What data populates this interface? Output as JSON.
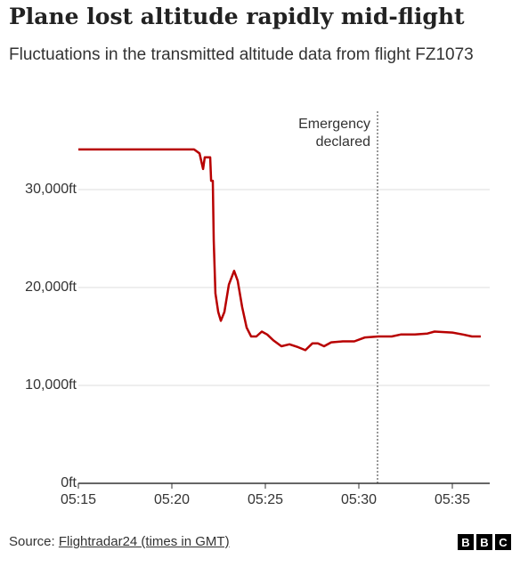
{
  "chart_data": {
    "type": "line",
    "title": "Plane lost altitude rapidly mid-flight",
    "subtitle": "Fluctuations in the transmitted altitude data from flight FZ1073",
    "x": [
      315,
      321.19,
      321.48,
      321.67,
      321.76,
      322.05,
      322.1,
      322.19,
      322.24,
      322.33,
      322.48,
      322.62,
      322.81,
      323.05,
      323.33,
      323.52,
      323.76,
      324,
      324.24,
      324.52,
      324.81,
      325.1,
      325.43,
      325.86,
      326.29,
      326.76,
      327.14,
      327.52,
      327.81,
      328.14,
      328.52,
      329.14,
      329.76,
      330.33,
      331.05,
      331.76,
      332.24,
      333,
      333.67,
      334.05,
      335,
      335.57,
      336.05,
      336.52
    ],
    "series": [
      {
        "name": "Altitude",
        "color": "#b80000",
        "values": [
          34100,
          34100,
          33700,
          32100,
          33300,
          33300,
          30900,
          30900,
          24800,
          19400,
          17500,
          16600,
          17500,
          20300,
          21700,
          20700,
          18000,
          15900,
          15000,
          15000,
          15500,
          15200,
          14600,
          14000,
          14200,
          13900,
          13600,
          14300,
          14300,
          14000,
          14400,
          14500,
          14500,
          14900,
          15000,
          15000,
          15200,
          15200,
          15300,
          15500,
          15400,
          15200,
          15000,
          15000
        ]
      }
    ],
    "xlim": [
      315,
      337
    ],
    "xticks": [
      {
        "value": 315,
        "label": "05:15"
      },
      {
        "value": 320,
        "label": "05:20"
      },
      {
        "value": 325,
        "label": "05:25"
      },
      {
        "value": 330,
        "label": "05:30"
      },
      {
        "value": 335,
        "label": "05:35"
      }
    ],
    "ylim": [
      0,
      38000
    ],
    "yticks": [
      {
        "value": 0,
        "label": "0ft"
      },
      {
        "value": 10000,
        "label": "10,000ft"
      },
      {
        "value": 20000,
        "label": "20,000ft"
      },
      {
        "value": 30000,
        "label": "30,000ft"
      }
    ],
    "grid": true,
    "annotation": {
      "x": 331,
      "text": [
        "Emergency",
        "declared"
      ]
    },
    "source_label": "Source:",
    "source": "Flightradar24 (times in GMT)",
    "logo": [
      "B",
      "B",
      "C"
    ]
  }
}
